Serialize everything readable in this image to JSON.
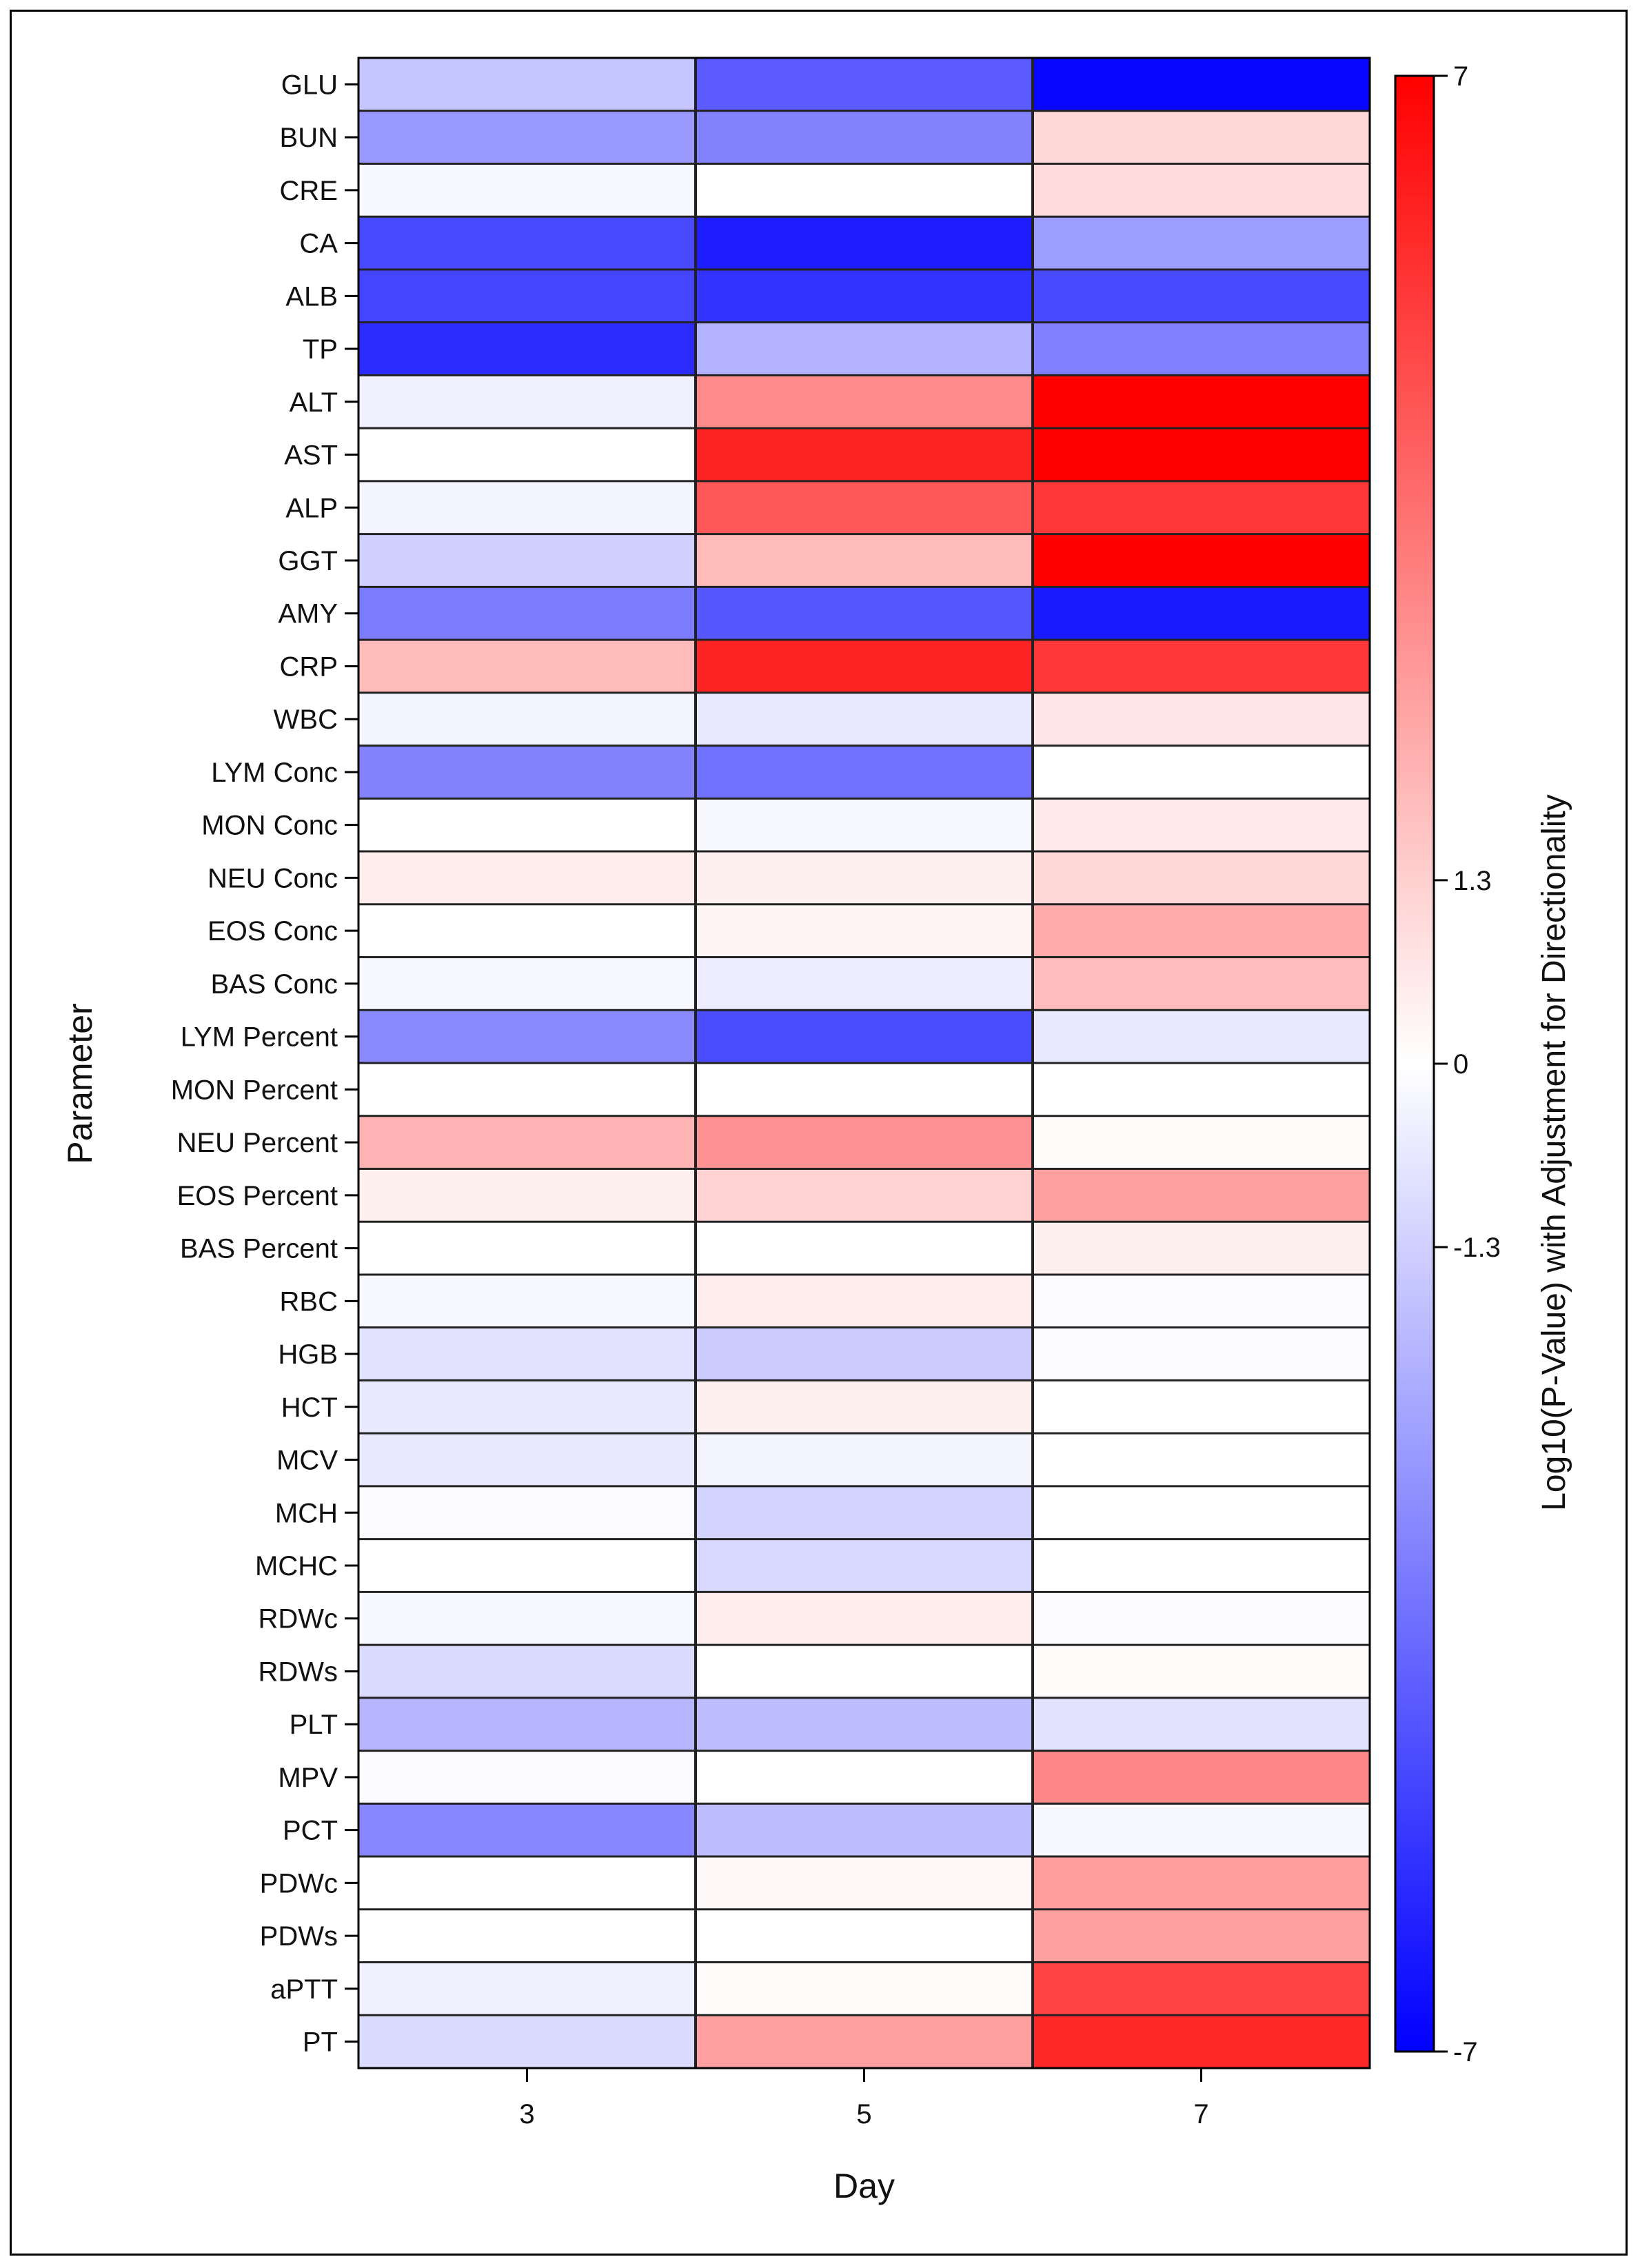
{
  "chart_data": {
    "type": "heatmap",
    "title": "",
    "xlabel": "Day",
    "ylabel": "Parameter",
    "x_categories": [
      "3",
      "5",
      "7"
    ],
    "y_categories": [
      "GLU",
      "BUN",
      "CRE",
      "CA",
      "ALB",
      "TP",
      "ALT",
      "AST",
      "ALP",
      "GGT",
      "AMY",
      "CRP",
      "WBC",
      "LYM Conc",
      "MON Conc",
      "NEU Conc",
      "EOS Conc",
      "BAS Conc",
      "LYM Percent",
      "MON Percent",
      "NEU Percent",
      "EOS Percent",
      "BAS Percent",
      "RBC",
      "HGB",
      "HCT",
      "MCV",
      "MCH",
      "MCHC",
      "RDWc",
      "RDWs",
      "PLT",
      "MPV",
      "PCT",
      "PDWc",
      "PDWs",
      "aPTT",
      "PT"
    ],
    "values": [
      [
        -1.6,
        -4.5,
        -6.8
      ],
      [
        -2.8,
        -3.4,
        1.1
      ],
      [
        -0.2,
        0.0,
        1.0
      ],
      [
        -5.0,
        -6.2,
        -2.7
      ],
      [
        -5.1,
        -5.6,
        -5.0
      ],
      [
        -5.8,
        -2.1,
        -3.5
      ],
      [
        -0.4,
        3.2,
        7.0
      ],
      [
        0.0,
        6.0,
        7.0
      ],
      [
        -0.3,
        4.6,
        5.5
      ],
      [
        -1.3,
        1.9,
        7.0
      ],
      [
        -3.6,
        -4.6,
        -6.3
      ],
      [
        1.9,
        6.0,
        5.5
      ],
      [
        -0.3,
        -0.6,
        0.7
      ],
      [
        -3.4,
        -3.9,
        0.0
      ],
      [
        0.0,
        -0.2,
        0.6
      ],
      [
        0.5,
        0.4,
        1.1
      ],
      [
        0.0,
        0.3,
        2.3
      ],
      [
        -0.2,
        -0.5,
        1.8
      ],
      [
        -3.2,
        -4.9,
        -0.6
      ],
      [
        0.0,
        0.0,
        0.0
      ],
      [
        2.1,
        3.0,
        0.1
      ],
      [
        0.4,
        1.2,
        2.6
      ],
      [
        0.0,
        0.0,
        0.4
      ],
      [
        -0.2,
        0.5,
        -0.1
      ],
      [
        -0.8,
        -1.4,
        -0.1
      ],
      [
        -0.6,
        0.4,
        0.0
      ],
      [
        -0.6,
        -0.3,
        0.0
      ],
      [
        -0.1,
        -1.2,
        0.0
      ],
      [
        0.0,
        -1.1,
        0.0
      ],
      [
        -0.2,
        0.5,
        -0.1
      ],
      [
        -1.0,
        0.0,
        0.1
      ],
      [
        -2.0,
        -1.8,
        -0.8
      ],
      [
        -0.1,
        0.0,
        3.3
      ],
      [
        -3.3,
        -1.8,
        -0.2
      ],
      [
        0.0,
        0.2,
        2.7
      ],
      [
        0.0,
        0.0,
        2.6
      ],
      [
        -0.4,
        0.1,
        5.2
      ],
      [
        -1.0,
        2.6,
        5.9
      ]
    ],
    "colorbar": {
      "label": "Log10(P-Value) with Adjustment for Directionality",
      "min": -7,
      "max": 7,
      "ticks": [
        -7,
        -1.3,
        0,
        1.3,
        7
      ],
      "tick_labels": [
        "-7",
        "-1.3",
        "0",
        "1.3",
        "7"
      ],
      "low_color": "#0000ff",
      "mid_color": "#ffffff",
      "high_color": "#ff0000"
    },
    "legend_placement": "right"
  }
}
